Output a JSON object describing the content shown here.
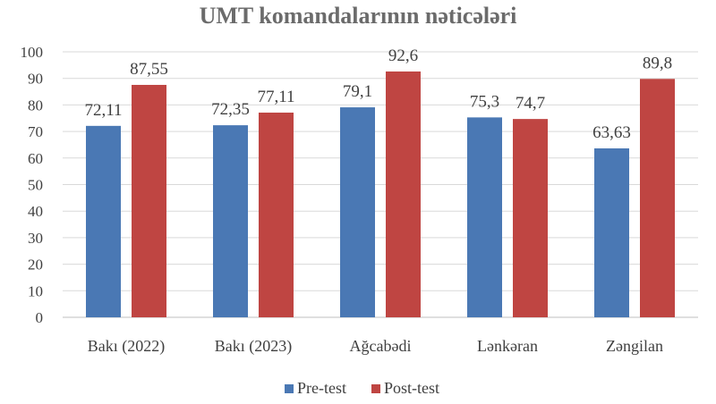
{
  "chart_data": {
    "type": "bar",
    "title": "UMT komandalarının nəticələri",
    "categories": [
      "Bakı (2022)",
      "Bakı (2023)",
      "Ağcabədi",
      "Lənkəran",
      "Zəngilan"
    ],
    "series": [
      {
        "name": "Pre-test",
        "color": "#4a78b4",
        "values": [
          72.11,
          72.35,
          79.1,
          75.3,
          63.63
        ],
        "labels": [
          "72,11",
          "72,35",
          "79,1",
          "75,3",
          "63,63"
        ]
      },
      {
        "name": "Post-test",
        "color": "#bf4542",
        "values": [
          87.55,
          77.11,
          92.6,
          74.7,
          89.8
        ],
        "labels": [
          "87,55",
          "77,11",
          "92,6",
          "74,7",
          "89,8"
        ]
      }
    ],
    "ylim": [
      0,
      100
    ],
    "yticks": [
      0,
      10,
      20,
      30,
      40,
      50,
      60,
      70,
      80,
      90,
      100
    ],
    "grid": true,
    "legend_position": "bottom",
    "xlabel": "",
    "ylabel": ""
  }
}
